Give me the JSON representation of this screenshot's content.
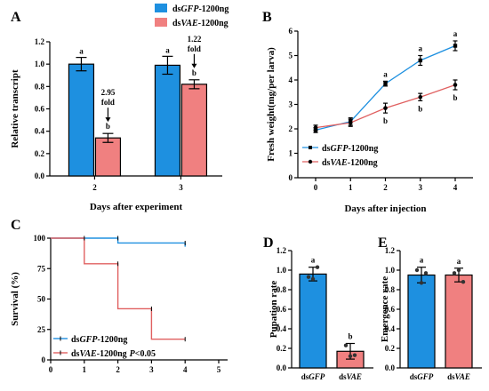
{
  "figure": {
    "panel_labels": [
      "A",
      "B",
      "C",
      "D",
      "E"
    ],
    "colors": {
      "gfp": "#1e90e0",
      "vae": "#f08080",
      "vae_line": "#e06060",
      "black": "#000000"
    }
  },
  "chart_data": [
    {
      "id": "A",
      "type": "bar",
      "xlabel": "Days after experiment",
      "ylabel": "Relative transcript",
      "categories": [
        "2",
        "3"
      ],
      "ylim": [
        0,
        1.2
      ],
      "yticks": [
        "0.0",
        "0.2",
        "0.4",
        "0.6",
        "0.8",
        "1.0",
        "1.2"
      ],
      "legend": [
        "dsGFP-1200ng",
        "dsVAE-1200ng"
      ],
      "series": [
        {
          "name": "dsGFP-1200ng",
          "values": [
            1.0,
            0.99
          ],
          "errors": [
            0.06,
            0.08
          ],
          "letters": [
            "a",
            "a"
          ]
        },
        {
          "name": "dsVAE-1200ng",
          "values": [
            0.34,
            0.82
          ],
          "errors": [
            0.04,
            0.04
          ],
          "letters": [
            "b",
            "b"
          ]
        }
      ],
      "annotations": [
        {
          "category": "2",
          "lines": [
            "2.95",
            "fold"
          ]
        },
        {
          "category": "3",
          "lines": [
            "1.22",
            "fold"
          ]
        }
      ]
    },
    {
      "id": "B",
      "type": "line",
      "xlabel": "Days after injection",
      "ylabel": "Fresh weight(mg/per larva)",
      "x": [
        0,
        1,
        2,
        3,
        4
      ],
      "xticks": [
        "0",
        "1",
        "2",
        "3",
        "4"
      ],
      "ylim": [
        0,
        6
      ],
      "yticks": [
        "0",
        "1",
        "2",
        "3",
        "4",
        "5",
        "6"
      ],
      "series": [
        {
          "name": "dsGFP-1200ng",
          "values": [
            1.95,
            2.3,
            3.85,
            4.8,
            5.4
          ],
          "errors": [
            0.1,
            0.15,
            0.1,
            0.2,
            0.2
          ],
          "letters": [
            "",
            "",
            "a",
            "a",
            "a"
          ]
        },
        {
          "name": "dsVAE-1200ng",
          "values": [
            2.05,
            2.25,
            2.85,
            3.3,
            3.8
          ],
          "errors": [
            0.1,
            0.15,
            0.2,
            0.15,
            0.2
          ],
          "letters": [
            "",
            "",
            "b",
            "b",
            "b"
          ]
        }
      ]
    },
    {
      "id": "C",
      "type": "line",
      "step": true,
      "xlabel": "",
      "ylabel": "Survival (%)",
      "xlim": [
        0,
        5
      ],
      "xticks": [
        "0",
        "1",
        "2",
        "3",
        "4",
        "5"
      ],
      "ylim": [
        0,
        100
      ],
      "yticks": [
        "0",
        "25",
        "50",
        "75",
        "100"
      ],
      "series": [
        {
          "name": "dsGFP-1200ng",
          "steps": [
            [
              0,
              100
            ],
            [
              2,
              100
            ],
            [
              2,
              96
            ],
            [
              4,
              96
            ],
            [
              4,
              93
            ]
          ]
        },
        {
          "name": "dsVAE-1200ng",
          "suffix": "P<0.05",
          "steps": [
            [
              0,
              100
            ],
            [
              1,
              100
            ],
            [
              1,
              79
            ],
            [
              2,
              79
            ],
            [
              2,
              42
            ],
            [
              3,
              42
            ],
            [
              3,
              17
            ],
            [
              4,
              17
            ]
          ]
        }
      ]
    },
    {
      "id": "D",
      "type": "bar",
      "xlabel": "",
      "ylabel": "Pupation rate",
      "categories": [
        "dsGFP",
        "dsVAE"
      ],
      "ylim": [
        0,
        1.2
      ],
      "yticks": [
        "0.0",
        "0.2",
        "0.4",
        "0.6",
        "0.8",
        "1.0",
        "1.2"
      ],
      "values": [
        0.96,
        0.17
      ],
      "errors": [
        0.07,
        0.08
      ],
      "letters": [
        "a",
        "b"
      ],
      "points": [
        [
          0.93,
          0.91,
          1.03
        ],
        [
          0.23,
          0.12,
          0.13
        ]
      ]
    },
    {
      "id": "E",
      "type": "bar",
      "xlabel": "",
      "ylabel": "Emergence rate",
      "categories": [
        "dsGFP",
        "dsVAE"
      ],
      "ylim": [
        0,
        1.2
      ],
      "yticks": [
        "0.0",
        "0.2",
        "0.4",
        "0.6",
        "0.8",
        "1.0",
        "1.2"
      ],
      "values": [
        0.95,
        0.95
      ],
      "errors": [
        0.08,
        0.07
      ],
      "letters": [
        "a",
        "a"
      ],
      "points": [
        [
          1.0,
          0.87,
          0.97
        ],
        [
          0.97,
          1.0,
          0.88
        ]
      ]
    }
  ]
}
